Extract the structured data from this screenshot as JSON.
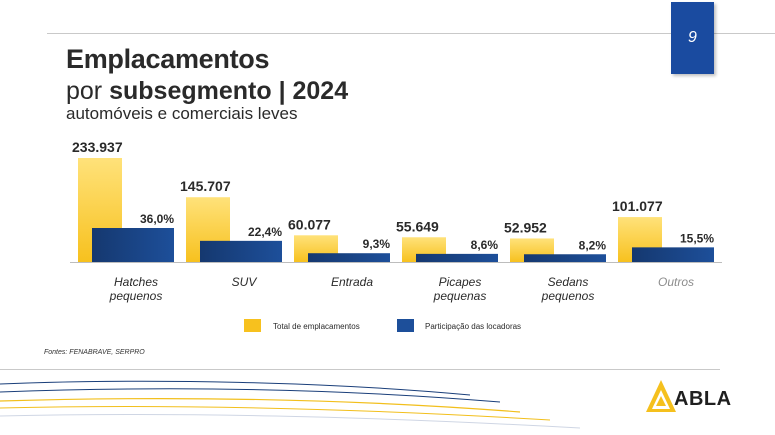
{
  "page_number": "9",
  "title": {
    "line1": "Emplacamentos",
    "line2_prefix": "por ",
    "line2_bold": "subsegmento | 2024",
    "subtitle": "automóveis e comerciais leves"
  },
  "source": "Fontes: FENABRAVE, SERPRO",
  "logo": {
    "text": "ABLA",
    "icon": "abla-triangle-logo"
  },
  "colors": {
    "total_bar": "#f7c11e",
    "total_bar_light": "#ffe27a",
    "share_bar": "#1d4f9a",
    "share_bar_dark": "#15386f",
    "badge": "#1a4ba0",
    "text": "#2a2a2a",
    "muted_label": "#8c8c8c"
  },
  "chart_data": {
    "type": "bar",
    "categories": [
      "Hatches pequenos",
      "SUV",
      "Entrada",
      "Picapes pequenas",
      "Sedans pequenos",
      "Outros"
    ],
    "category_lines": [
      [
        "Hatches",
        "pequenos"
      ],
      [
        "SUV"
      ],
      [
        "Entrada"
      ],
      [
        "Picapes",
        "pequenas"
      ],
      [
        "Sedans",
        "pequenos"
      ],
      [
        "Outros"
      ]
    ],
    "series": [
      {
        "name": "Total de emplacamentos",
        "values": [
          233937,
          145707,
          60077,
          55649,
          52952,
          101077
        ],
        "labels": [
          "233.937",
          "145.707",
          "60.077",
          "55.649",
          "52.952",
          "101.077"
        ]
      },
      {
        "name": "Participação das locadoras",
        "values": [
          36.0,
          22.4,
          9.3,
          8.6,
          8.2,
          15.5
        ],
        "labels": [
          "36,0%",
          "22,4%",
          "9,3%",
          "8,6%",
          "8,2%",
          "15,5%"
        ]
      }
    ],
    "legend_position": "bottom",
    "grid": false
  }
}
